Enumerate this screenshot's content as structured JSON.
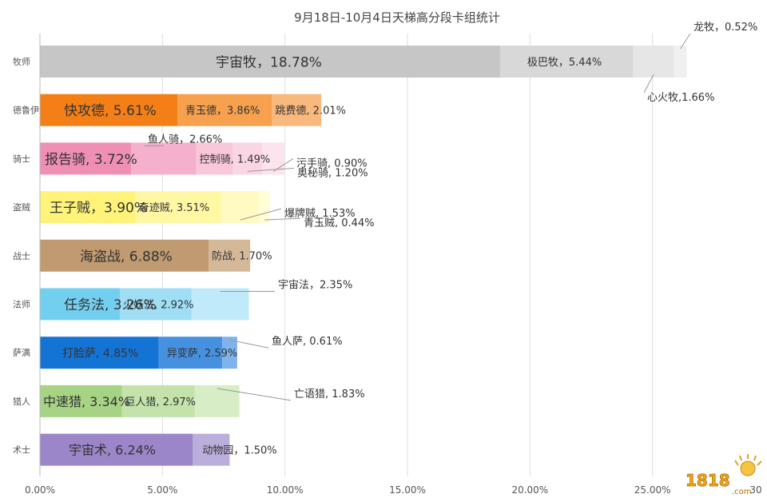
{
  "chart_data": {
    "type": "bar",
    "stacked": true,
    "orientation": "horizontal",
    "title": "9月18日-10月4日天梯高分段卡组统计",
    "xlim": [
      0,
      30
    ],
    "xticks": [
      "0.00%",
      "5.00%",
      "10.00%",
      "15.00%",
      "20.00%",
      "25.00%",
      "30"
    ],
    "grid": true,
    "categories": [
      "牧师",
      "德鲁伊",
      "骑士",
      "盗贼",
      "战士",
      "法师",
      "萨满",
      "猎人",
      "术士"
    ],
    "rows": [
      {
        "class": "牧师",
        "segments": [
          {
            "name": "宇宙牧",
            "value": 18.78,
            "label": "宇宙牧，18.78%"
          },
          {
            "name": "极巴牧",
            "value": 5.44,
            "label": "极巴牧，5.44%"
          },
          {
            "name": "心火牧",
            "value": 1.66,
            "label": "心火牧,1.66%"
          },
          {
            "name": "龙牧",
            "value": 0.52,
            "label": "龙牧，0.52%"
          }
        ]
      },
      {
        "class": "德鲁伊",
        "segments": [
          {
            "name": "快攻德",
            "value": 5.61,
            "label": "快攻德, 5.61%"
          },
          {
            "name": "青玉德",
            "value": 3.86,
            "label": "青玉德，3.86%"
          },
          {
            "name": "跳费德",
            "value": 2.01,
            "label": "跳费德, 2.01%"
          }
        ]
      },
      {
        "class": "骑士",
        "segments": [
          {
            "name": "报告骑",
            "value": 3.72,
            "label": "报告骑, 3.72%"
          },
          {
            "name": "鱼人骑",
            "value": 2.66,
            "label": "鱼人骑，2.66%"
          },
          {
            "name": "控制骑",
            "value": 1.49,
            "label": "控制骑, 1.49%"
          },
          {
            "name": "奥秘骑",
            "value": 1.2,
            "label": "奥秘骑, 1.20%"
          },
          {
            "name": "污手骑",
            "value": 0.9,
            "label": "污手骑, 0.90%"
          }
        ]
      },
      {
        "class": "盗贼",
        "segments": [
          {
            "name": "王子贼",
            "value": 3.9,
            "label": "王子贼，3.90%"
          },
          {
            "name": "奇迹贼",
            "value": 3.51,
            "label": "奇迹贼, 3.51%"
          },
          {
            "name": "爆牌贼",
            "value": 1.53,
            "label": "爆牌贼, 1.53%"
          },
          {
            "name": "青玉贼",
            "value": 0.44,
            "label": "青玉贼, 0.44%"
          }
        ]
      },
      {
        "class": "战士",
        "segments": [
          {
            "name": "海盗战",
            "value": 6.88,
            "label": "海盗战, 6.88%"
          },
          {
            "name": "防战",
            "value": 1.7,
            "label": "防战, 1.70%"
          }
        ]
      },
      {
        "class": "法师",
        "segments": [
          {
            "name": "任务法",
            "value": 3.26,
            "label": "任务法, 3.26%"
          },
          {
            "name": "火妖法",
            "value": 2.92,
            "label": "火妖法, 2.92%"
          },
          {
            "name": "宇宙法",
            "value": 2.35,
            "label": "宇宙法，2.35%"
          }
        ]
      },
      {
        "class": "萨满",
        "segments": [
          {
            "name": "打脸萨",
            "value": 4.85,
            "label": "打脸萨, 4.85%"
          },
          {
            "name": "异变萨",
            "value": 2.59,
            "label": "异变萨, 2.59%"
          },
          {
            "name": "鱼人萨",
            "value": 0.61,
            "label": "鱼人萨, 0.61%"
          }
        ]
      },
      {
        "class": "猎人",
        "segments": [
          {
            "name": "中速猎",
            "value": 3.34,
            "label": "中速猎, 3.34%"
          },
          {
            "name": "巨人猎",
            "value": 2.97,
            "label": "巨人猎, 2.97%"
          },
          {
            "name": "亡语猎",
            "value": 1.83,
            "label": "亡语猎, 1.83%"
          }
        ]
      },
      {
        "class": "术士",
        "segments": [
          {
            "name": "宇宙术",
            "value": 6.24,
            "label": "宇宙术, 6.24%"
          },
          {
            "name": "动物园",
            "value": 1.5,
            "label": "动物园，1.50%"
          }
        ]
      }
    ],
    "row_colors": [
      [
        "#c6c6c6",
        "#d8d8d8",
        "#e6e6e6",
        "#f0f0f0"
      ],
      [
        "#f57f17",
        "#f7a04d",
        "#f9b97d"
      ],
      [
        "#ef8fb6",
        "#f4b0cc",
        "#f8c7da",
        "#fad6e4",
        "#fce4ee"
      ],
      [
        "#fff37a",
        "#fff7a3",
        "#fffac2",
        "#fffcd6"
      ],
      [
        "#c09a70",
        "#d4b898"
      ],
      [
        "#73cff0",
        "#9fdef5",
        "#c0eaf9"
      ],
      [
        "#1474d6",
        "#4591e0",
        "#7fb3ec"
      ],
      [
        "#a6d384",
        "#c3e3aa",
        "#d7edc6"
      ],
      [
        "#9a86c8",
        "#bcaedc"
      ]
    ]
  },
  "watermark": {
    "text": "1818",
    "suffix": ".com"
  }
}
